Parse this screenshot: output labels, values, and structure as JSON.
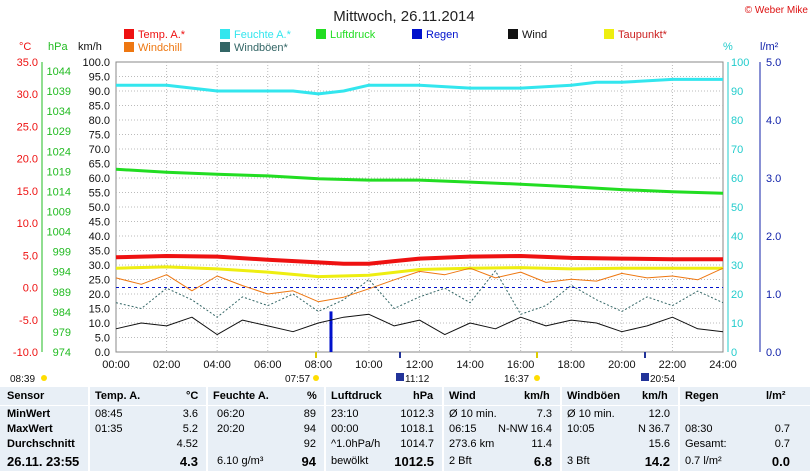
{
  "header": {
    "title": "Mittwoch, 26.11.2014",
    "credit": "© Weber Mike"
  },
  "legend": [
    {
      "label": "Temp. A.*",
      "color": "#ee1111"
    },
    {
      "label": "Feuchte A.*",
      "color": "#33e6ee"
    },
    {
      "label": "Luftdruck",
      "color": "#22dd22"
    },
    {
      "label": "Regen",
      "color": "#0011cc"
    },
    {
      "label": "Wind",
      "color": "#111111"
    },
    {
      "label": "Taupunkt*",
      "color": "#eeee11"
    },
    {
      "label": "Windchill",
      "color": "#ee7711"
    },
    {
      "label": "Windböen*",
      "color": "#336666"
    }
  ],
  "axes": {
    "temp_unit": "°C",
    "pressure_unit": "hPa",
    "wind_unit": "km/h",
    "humidity_unit": "%",
    "rain_unit": "l/m²",
    "temp_ticks": [
      "35.0",
      "30.0",
      "25.0",
      "20.0",
      "15.0",
      "10.0",
      "5.0",
      "0.0",
      "-5.0",
      "-10.0"
    ],
    "pressure_ticks": [
      "1044",
      "1039",
      "1034",
      "1029",
      "1024",
      "1019",
      "1014",
      "1009",
      "1004",
      "999",
      "994",
      "989",
      "984",
      "979",
      "974"
    ],
    "wind_ticks": [
      "100.0",
      "95.0",
      "90.0",
      "85.0",
      "80.0",
      "75.0",
      "70.0",
      "65.0",
      "60.0",
      "55.0",
      "50.0",
      "45.0",
      "40.0",
      "35.0",
      "30.0",
      "25.0",
      "20.0",
      "15.0",
      "10.0",
      "5.0",
      "0.0"
    ],
    "humidity_ticks": [
      "100",
      "90",
      "80",
      "70",
      "60",
      "50",
      "40",
      "30",
      "20",
      "10",
      "0"
    ],
    "rain_ticks": [
      "5.0",
      "4.0",
      "3.0",
      "2.0",
      "1.0",
      "0.0"
    ],
    "time_ticks": [
      "00:00",
      "02:00",
      "04:00",
      "06:00",
      "08:00",
      "10:00",
      "12:00",
      "14:00",
      "16:00",
      "18:00",
      "20:00",
      "22:00",
      "24:00"
    ]
  },
  "astro": {
    "sunrise": "08:39",
    "sunset": "16:37",
    "moonrise": "11:12",
    "moonset": "20:54",
    "sun_noon": "07:57"
  },
  "chart_data": {
    "type": "line",
    "x_unit": "hour",
    "xlim": [
      0,
      24
    ],
    "series": [
      {
        "name": "Temp. A.*",
        "axis": "°C",
        "color": "#ee1111",
        "x": [
          0,
          2,
          4,
          6,
          8,
          9,
          10,
          11,
          12,
          14,
          16,
          18,
          20,
          22,
          24
        ],
        "y": [
          4.7,
          4.9,
          4.8,
          4.3,
          3.9,
          3.7,
          3.7,
          4.1,
          4.5,
          4.8,
          4.9,
          4.6,
          4.5,
          4.4,
          4.4
        ]
      },
      {
        "name": "Feuchte A.*",
        "axis": "%",
        "color": "#33e6ee",
        "x": [
          0,
          2,
          4,
          6,
          7,
          8,
          9,
          10,
          12,
          14,
          16,
          18,
          19,
          20,
          22,
          24
        ],
        "y": [
          92,
          92,
          90,
          90,
          90,
          89,
          90,
          92,
          92,
          91,
          91,
          92,
          93,
          93,
          94,
          94
        ]
      },
      {
        "name": "Luftdruck",
        "axis": "hPa",
        "color": "#22dd22",
        "x": [
          0,
          2,
          4,
          6,
          8,
          10,
          12,
          14,
          16,
          18,
          20,
          22,
          24
        ],
        "y": [
          1018.1,
          1017.4,
          1016.9,
          1016.5,
          1015.8,
          1015.5,
          1015.5,
          1015.0,
          1014.5,
          1013.9,
          1013.2,
          1012.7,
          1012.3
        ]
      },
      {
        "name": "Taupunkt*",
        "axis": "°C",
        "color": "#eeee11",
        "x": [
          0,
          2,
          4,
          6,
          8,
          10,
          12,
          14,
          16,
          18,
          20,
          22,
          24
        ],
        "y": [
          3.0,
          3.2,
          2.9,
          2.4,
          1.7,
          1.9,
          2.8,
          3.0,
          3.1,
          2.9,
          3.0,
          3.0,
          3.0
        ]
      },
      {
        "name": "Windchill",
        "axis": "°C",
        "color": "#ee7711",
        "x": [
          0,
          1,
          2,
          3,
          4,
          5,
          6,
          7,
          8,
          9,
          10,
          11,
          12,
          13,
          14,
          15,
          16,
          17,
          18,
          19,
          20,
          21,
          22,
          23,
          24
        ],
        "y": [
          1.5,
          0.5,
          2.0,
          -0.5,
          1.8,
          0.3,
          -1.0,
          -0.5,
          -2.2,
          -1.5,
          -0.2,
          1.2,
          2.5,
          2.0,
          3.0,
          1.5,
          2.4,
          0.8,
          1.3,
          1.0,
          2.2,
          1.5,
          1.8,
          1.2,
          3.0
        ]
      },
      {
        "name": "Windböen*",
        "axis": "km/h",
        "color": "#336666",
        "x": [
          0,
          1,
          2,
          3,
          4,
          5,
          6,
          7,
          8,
          9,
          10,
          11,
          12,
          13,
          14,
          15,
          16,
          17,
          18,
          19,
          20,
          21,
          22,
          23,
          24
        ],
        "y": [
          17,
          15,
          22,
          18,
          12,
          19,
          16,
          20,
          14,
          18,
          25,
          15,
          19,
          22,
          17,
          28,
          13,
          16,
          23,
          18,
          14,
          19,
          16,
          21,
          17
        ]
      },
      {
        "name": "Wind",
        "axis": "km/h",
        "color": "#111111",
        "x": [
          0,
          1,
          2,
          3,
          4,
          5,
          6,
          7,
          8,
          9,
          10,
          11,
          12,
          13,
          14,
          15,
          16,
          17,
          18,
          19,
          20,
          21,
          22,
          23,
          24
        ],
        "y": [
          8,
          10,
          9,
          12,
          6,
          11,
          9,
          7,
          10,
          12,
          13,
          9,
          11,
          6,
          10,
          8,
          12,
          9,
          11,
          10,
          7,
          9,
          12,
          8,
          7
        ]
      }
    ],
    "bars": [
      {
        "name": "Regen",
        "axis": "l/m²",
        "color": "#0011cc",
        "x": 8.5,
        "value": 0.7
      }
    ],
    "reference_lines": [
      {
        "axis": "°C",
        "value": 0.0,
        "style": "dashed",
        "color": "#0011cc"
      }
    ],
    "ylims": {
      "°C": [
        -10,
        35
      ],
      "hPa": [
        974,
        1044
      ],
      "km/h": [
        0,
        100
      ],
      "%": [
        0,
        100
      ],
      "l/m²": [
        0,
        5
      ]
    },
    "grid": true
  },
  "stats": {
    "headers": {
      "sensor": "Sensor",
      "temp": "Temp. A.",
      "temp_unit": "°C",
      "hum": "Feuchte A.",
      "hum_unit": "%",
      "press": "Luftdruck",
      "press_unit": "hPa",
      "wind": "Wind",
      "wind_unit": "km/h",
      "gust": "Windböen",
      "gust_unit": "km/h",
      "rain": "Regen",
      "rain_unit": "l/m²"
    },
    "rows": [
      {
        "label": "MinWert",
        "temp_time": "08:45",
        "temp_val": "3.6",
        "hum_time": "06:20",
        "hum_val": "89",
        "press_time": "23:10",
        "press_val": "1012.3",
        "wind_time": "Ø 10 min.",
        "wind_dir": "",
        "wind_val": "7.3",
        "gust_time": "Ø 10 min.",
        "gust_dir": "",
        "gust_val": "12.0",
        "rain_time": "",
        "rain_val": ""
      },
      {
        "label": "MaxWert",
        "temp_time": "01:35",
        "temp_val": "5.2",
        "hum_time": "20:20",
        "hum_val": "94",
        "press_time": "00:00",
        "press_val": "1018.1",
        "wind_time": "06:15",
        "wind_dir": "N-NW",
        "wind_val": "16.4",
        "gust_time": "10:05",
        "gust_dir": "N",
        "gust_val": "36.7",
        "rain_time": "08:30",
        "rain_val": "0.7"
      },
      {
        "label": "Durchschnitt",
        "temp_time": "",
        "temp_val": "4.52",
        "hum_time": "",
        "hum_val": "92",
        "press_time": "^1.0hPa/h",
        "press_val": "1014.7",
        "wind_time": "273.6 km",
        "wind_dir": "",
        "wind_val": "11.4",
        "gust_time": "",
        "gust_dir": "",
        "gust_val": "15.6",
        "rain_time": "Gesamt:",
        "rain_val": "0.7"
      }
    ],
    "current": {
      "label": "26.11. 23:55",
      "temp_val": "4.3",
      "hum_time": "6.10 g/m³",
      "hum_val": "94",
      "press_time": "bewölkt",
      "press_val": "1012.5",
      "wind_time": "2 Bft",
      "wind_val": "6.8",
      "gust_time": "3 Bft",
      "gust_val": "14.2",
      "rain_time": "0.7 l/m²",
      "rain_val": "0.0"
    }
  }
}
